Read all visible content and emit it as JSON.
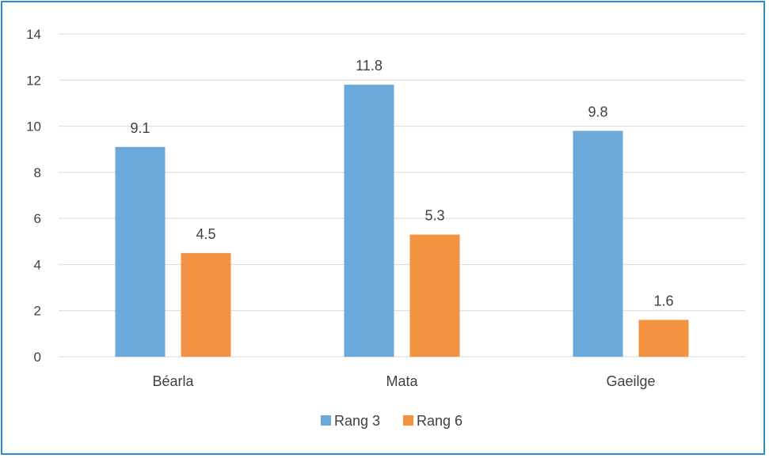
{
  "chart_data": {
    "type": "bar",
    "categories": [
      "Béarla",
      "Mata",
      "Gaeilge"
    ],
    "series": [
      {
        "name": "Rang 3",
        "color": "#6aa9d9",
        "values": [
          9.1,
          11.8,
          9.8
        ]
      },
      {
        "name": "Rang 6",
        "color": "#f39240",
        "values": [
          4.5,
          5.3,
          1.6
        ]
      }
    ],
    "ylim": [
      0,
      14
    ],
    "yticks": [
      0,
      2,
      4,
      6,
      8,
      10,
      12,
      14
    ],
    "grid": true,
    "legend_position": "bottom",
    "title": "",
    "xlabel": "",
    "ylabel": "",
    "gridline_color": "#d9d9d9",
    "border_color": "#2e8bc9"
  }
}
